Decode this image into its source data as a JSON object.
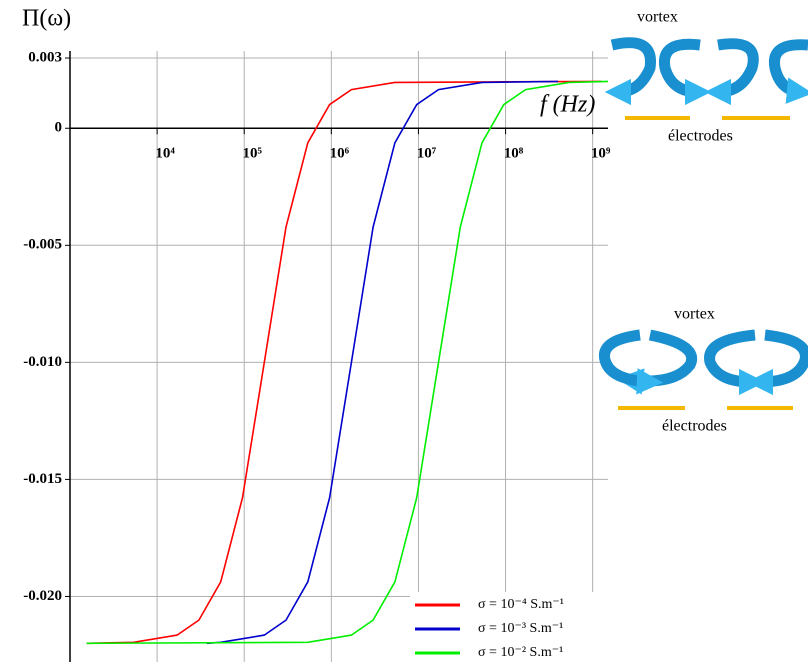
{
  "chart_data": {
    "type": "line",
    "ylabel": "Π(ω)",
    "xlabel": "f (Hz)",
    "xscale": "log",
    "grid": true,
    "legend": "lower right",
    "xlim": [
      1000,
      1500000000
    ],
    "ylim": [
      -0.0228,
      0.0033
    ],
    "xticks": [
      {
        "value": 10000,
        "label": "10⁴"
      },
      {
        "value": 100000,
        "label": "10⁵"
      },
      {
        "value": 1000000,
        "label": "10⁶"
      },
      {
        "value": 10000000,
        "label": "10⁷"
      },
      {
        "value": 100000000,
        "label": "10⁸"
      },
      {
        "value": 1000000000,
        "label": "10⁹"
      }
    ],
    "yticks": [
      0.003,
      0,
      -0.005,
      {
        "value": -0.01,
        "label": "-0.010"
      },
      -0.015,
      {
        "value": -0.02,
        "label": "-0.020"
      }
    ],
    "series": [
      {
        "name": "σ = 10⁻⁴ S.m⁻¹",
        "color": "#ff0000",
        "x": [
          1550,
          5370,
          16980,
          30200,
          53700,
          95500,
          170000,
          302000,
          537000,
          955000,
          1700000,
          5370000,
          1260000000
        ],
        "values": [
          -0.022,
          -0.02196,
          -0.02165,
          -0.02101,
          -0.01938,
          -0.01578,
          -0.01,
          -0.00422,
          -0.00062,
          0.00101,
          0.00165,
          0.00196,
          0.002
        ]
      },
      {
        "name": "σ = 10⁻³ S.m⁻¹",
        "color": "#0000cc",
        "x": [
          37150,
          53700,
          170000,
          302000,
          537000,
          955000,
          1700000,
          3020000,
          5370000,
          9550000,
          17000000,
          53700000,
          400000000
        ],
        "values": [
          -0.022,
          -0.02196,
          -0.02165,
          -0.02101,
          -0.01938,
          -0.01578,
          -0.01,
          -0.00422,
          -0.00062,
          0.00101,
          0.00165,
          0.00196,
          0.002
        ]
      },
      {
        "name": "σ = 10⁻² S.m⁻¹",
        "color": "#00ee00",
        "x": [
          1550,
          537000,
          1700000,
          3020000,
          5370000,
          9550000,
          17000000,
          30200000,
          53700000,
          95500000,
          170000000,
          537000000,
          1500000000
        ],
        "values": [
          -0.022,
          -0.02196,
          -0.02165,
          -0.02101,
          -0.01938,
          -0.01578,
          -0.01,
          -0.00422,
          -0.00062,
          0.00101,
          0.00165,
          0.00196,
          0.002
        ]
      }
    ]
  },
  "diagrams": [
    {
      "top_label": "vortex",
      "bottom_label": "électrodes"
    },
    {
      "top_label": "vortex",
      "bottom_label": "électrodes"
    }
  ]
}
